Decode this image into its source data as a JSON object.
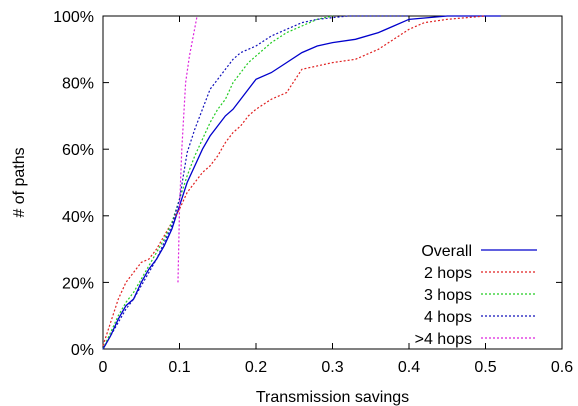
{
  "chart_data": {
    "type": "line",
    "title": "",
    "xlabel": "Transmission savings",
    "ylabel": "# of paths",
    "xlim": [
      0,
      0.6
    ],
    "ylim": [
      0,
      100
    ],
    "xticks": [
      {
        "value": 0,
        "label": "0"
      },
      {
        "value": 0.1,
        "label": "0.1"
      },
      {
        "value": 0.2,
        "label": "0.2"
      },
      {
        "value": 0.3,
        "label": "0.3"
      },
      {
        "value": 0.4,
        "label": "0.4"
      },
      {
        "value": 0.5,
        "label": "0.5"
      },
      {
        "value": 0.6,
        "label": "0.6"
      }
    ],
    "yticks": [
      {
        "value": 0,
        "label": "0%"
      },
      {
        "value": 20,
        "label": "20%"
      },
      {
        "value": 40,
        "label": "40%"
      },
      {
        "value": 60,
        "label": "60%"
      },
      {
        "value": 80,
        "label": "80%"
      },
      {
        "value": 100,
        "label": "100%"
      }
    ],
    "grid": false,
    "legend_position": "bottom-right",
    "series": [
      {
        "name": "Overall",
        "color": "#0000cc",
        "dash": "solid",
        "points": [
          [
            0,
            0
          ],
          [
            0.01,
            4
          ],
          [
            0.02,
            9
          ],
          [
            0.03,
            13
          ],
          [
            0.04,
            15
          ],
          [
            0.05,
            20
          ],
          [
            0.06,
            24
          ],
          [
            0.07,
            27
          ],
          [
            0.08,
            31
          ],
          [
            0.09,
            36
          ],
          [
            0.1,
            43
          ],
          [
            0.11,
            50
          ],
          [
            0.12,
            55
          ],
          [
            0.13,
            60
          ],
          [
            0.14,
            64
          ],
          [
            0.15,
            67
          ],
          [
            0.16,
            70
          ],
          [
            0.17,
            72
          ],
          [
            0.18,
            75
          ],
          [
            0.19,
            78
          ],
          [
            0.2,
            81
          ],
          [
            0.22,
            83
          ],
          [
            0.24,
            86
          ],
          [
            0.26,
            89
          ],
          [
            0.28,
            91
          ],
          [
            0.3,
            92
          ],
          [
            0.33,
            93
          ],
          [
            0.36,
            95
          ],
          [
            0.38,
            97
          ],
          [
            0.4,
            99
          ],
          [
            0.45,
            100
          ],
          [
            0.52,
            100
          ]
        ]
      },
      {
        "name": "2 hops",
        "color": "#e02020",
        "dash": "dotted",
        "points": [
          [
            0,
            1
          ],
          [
            0.01,
            8
          ],
          [
            0.02,
            15
          ],
          [
            0.03,
            20
          ],
          [
            0.04,
            23
          ],
          [
            0.05,
            26
          ],
          [
            0.06,
            27
          ],
          [
            0.07,
            30
          ],
          [
            0.08,
            34
          ],
          [
            0.09,
            38
          ],
          [
            0.1,
            42
          ],
          [
            0.11,
            47
          ],
          [
            0.12,
            50
          ],
          [
            0.13,
            53
          ],
          [
            0.14,
            55
          ],
          [
            0.15,
            58
          ],
          [
            0.16,
            62
          ],
          [
            0.17,
            65
          ],
          [
            0.18,
            67
          ],
          [
            0.19,
            70
          ],
          [
            0.2,
            72
          ],
          [
            0.22,
            75
          ],
          [
            0.24,
            77
          ],
          [
            0.26,
            84
          ],
          [
            0.28,
            85
          ],
          [
            0.3,
            86
          ],
          [
            0.33,
            87
          ],
          [
            0.36,
            90
          ],
          [
            0.38,
            93
          ],
          [
            0.4,
            96
          ],
          [
            0.42,
            98
          ],
          [
            0.45,
            99
          ],
          [
            0.5,
            100
          ]
        ]
      },
      {
        "name": "3 hops",
        "color": "#22cc22",
        "dash": "dotted",
        "points": [
          [
            0,
            0
          ],
          [
            0.01,
            5
          ],
          [
            0.02,
            10
          ],
          [
            0.03,
            14
          ],
          [
            0.04,
            17
          ],
          [
            0.05,
            21
          ],
          [
            0.06,
            25
          ],
          [
            0.07,
            29
          ],
          [
            0.08,
            33
          ],
          [
            0.09,
            38
          ],
          [
            0.1,
            45
          ],
          [
            0.11,
            52
          ],
          [
            0.12,
            58
          ],
          [
            0.13,
            63
          ],
          [
            0.14,
            68
          ],
          [
            0.15,
            72
          ],
          [
            0.16,
            75
          ],
          [
            0.17,
            80
          ],
          [
            0.18,
            83
          ],
          [
            0.19,
            86
          ],
          [
            0.2,
            88
          ],
          [
            0.22,
            92
          ],
          [
            0.24,
            95
          ],
          [
            0.26,
            97
          ],
          [
            0.28,
            99
          ],
          [
            0.3,
            100
          ]
        ]
      },
      {
        "name": "4 hops",
        "color": "#1111bb",
        "dash": "dotted",
        "points": [
          [
            0,
            0
          ],
          [
            0.01,
            4
          ],
          [
            0.02,
            8
          ],
          [
            0.03,
            12
          ],
          [
            0.04,
            15
          ],
          [
            0.05,
            19
          ],
          [
            0.06,
            23
          ],
          [
            0.07,
            27
          ],
          [
            0.08,
            32
          ],
          [
            0.09,
            37
          ],
          [
            0.1,
            45
          ],
          [
            0.11,
            59
          ],
          [
            0.12,
            66
          ],
          [
            0.13,
            72
          ],
          [
            0.14,
            78
          ],
          [
            0.15,
            81
          ],
          [
            0.16,
            84
          ],
          [
            0.17,
            87
          ],
          [
            0.18,
            89
          ],
          [
            0.2,
            91
          ],
          [
            0.22,
            94
          ],
          [
            0.24,
            96
          ],
          [
            0.26,
            98
          ],
          [
            0.28,
            99
          ],
          [
            0.32,
            100
          ],
          [
            0.4,
            100
          ]
        ]
      },
      {
        "name": ">4 hops",
        "color": "#dd22dd",
        "dash": "dotted",
        "points": [
          [
            0.098,
            20
          ],
          [
            0.1,
            42
          ],
          [
            0.103,
            60
          ],
          [
            0.108,
            80
          ],
          [
            0.113,
            88
          ],
          [
            0.118,
            94
          ],
          [
            0.123,
            100
          ]
        ]
      }
    ]
  }
}
